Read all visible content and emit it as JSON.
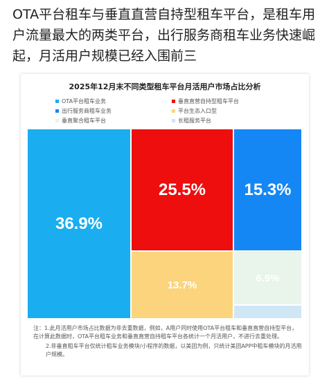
{
  "headline": "OTA平台租车与垂直直营自持型租车平台，是租车用户流量最大的两类平台，出行服务商租车业务快速崛起，月活用户规模已经入围前三",
  "chart_data": {
    "type": "treemap",
    "title": "2025年12月末不同类型租车平台月活用户市场占比分析",
    "series": [
      {
        "name": "OTA平台租车业务",
        "value": 36.9,
        "label": "36.9%",
        "color": "#1aaef0"
      },
      {
        "name": "垂直直营自持型租车平台",
        "value": 25.5,
        "label": "25.5%",
        "color": "#ee0e0e"
      },
      {
        "name": "出行服务商租车业务",
        "value": 15.3,
        "label": "15.3%",
        "color": "#1487f5"
      },
      {
        "name": "平台生态入口型",
        "value": 13.7,
        "label": "13.7%",
        "color": "#fcd47d"
      },
      {
        "name": "垂直聚合租车平台",
        "value": 6.9,
        "label": "6.9%",
        "color": "#e9f4ea"
      },
      {
        "name": "长租服务平台",
        "value": 1.7,
        "label": "",
        "color": "#cfe6f5"
      }
    ],
    "legend_position": "top"
  },
  "notes": [
    "注：1.此月活用户市场占比数据为非去重数据，例如，A用户同时使用OTA平台租车和垂直直营自持型平台，在计算此数据时，OTA平台租车业务和垂直直营自持租车平台各统计一个月活用户，不进行去重处理。",
    "2.非垂直租车平台仅统计租车业务模块/小程序的数据，以美团为例，只统计美团APP中租车模块的月活用户规模。"
  ]
}
